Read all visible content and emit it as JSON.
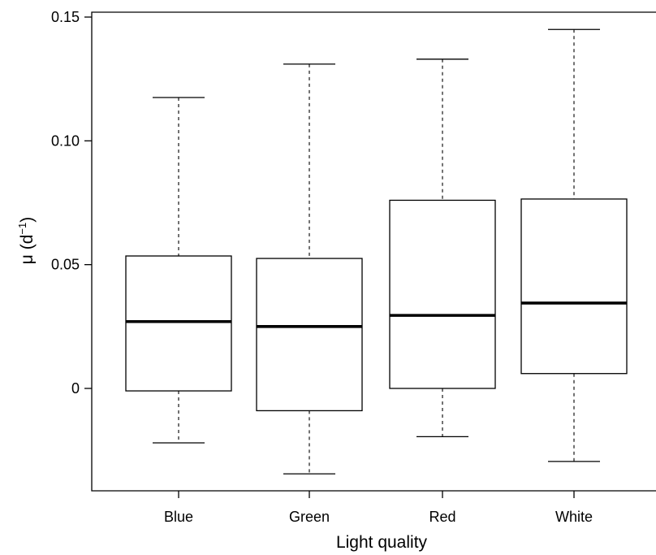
{
  "chart_data": {
    "type": "boxplot",
    "xlabel": "Light quality",
    "ylabel_main": "μ (d",
    "ylabel_sup": "−1",
    "ylabel_close": ")",
    "ylim": [
      -0.041,
      0.153
    ],
    "yticks": [
      {
        "value": 0,
        "label": "0"
      },
      {
        "value": 0.05,
        "label": "0.05"
      },
      {
        "value": 0.1,
        "label": "0.10"
      },
      {
        "value": 0.15,
        "label": "0.15"
      }
    ],
    "categories": [
      "Blue",
      "Green",
      "Red",
      "White"
    ],
    "boxes": [
      {
        "category": "Blue",
        "whisker_low": -0.022,
        "q1": -0.001,
        "median": 0.027,
        "q3": 0.0535,
        "whisker_high": 0.1175
      },
      {
        "category": "Green",
        "whisker_low": -0.0345,
        "q1": -0.009,
        "median": 0.025,
        "q3": 0.0525,
        "whisker_high": 0.131
      },
      {
        "category": "Red",
        "whisker_low": -0.0195,
        "q1": 0.0,
        "median": 0.0295,
        "q3": 0.076,
        "whisker_high": 0.133
      },
      {
        "category": "White",
        "whisker_low": -0.0295,
        "q1": 0.006,
        "median": 0.0345,
        "q3": 0.0765,
        "whisker_high": 0.145
      }
    ],
    "grid": false,
    "legend": "none",
    "colors": {
      "box_fill": "#ffffff",
      "stroke": "#000000"
    }
  }
}
